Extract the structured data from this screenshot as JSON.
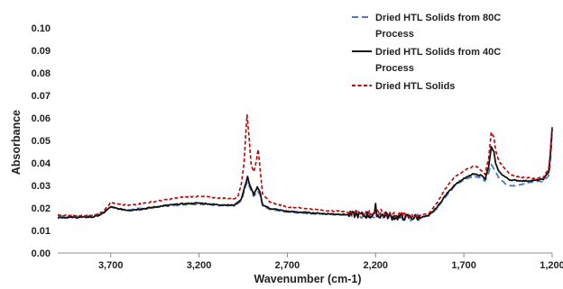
{
  "chart_data": {
    "type": "line",
    "title": "",
    "xlabel": "Wavenumber (cm-1)",
    "ylabel": "Absorbance",
    "xlim": [
      4000,
      1200
    ],
    "x_reversed": true,
    "ylim": [
      0,
      0.1
    ],
    "x_ticks": [
      3700,
      3200,
      2700,
      2200,
      1700,
      1200
    ],
    "x_tick_labels": [
      "3,700",
      "3,200",
      "2,700",
      "2,200",
      "1,700",
      "1,200"
    ],
    "y_ticks": [
      0,
      0.01,
      0.02,
      0.03,
      0.04,
      0.05,
      0.06,
      0.07,
      0.08,
      0.09,
      0.1
    ],
    "y_tick_labels": [
      "0.00",
      "0.01",
      "0.02",
      "0.03",
      "0.04",
      "0.05",
      "0.06",
      "0.07",
      "0.08",
      "0.09",
      "0.10"
    ],
    "grid": false,
    "legend": "top-right",
    "series": [
      {
        "name": "Dried HTL Solids from 80C Process",
        "color": "#4a7ebb",
        "dash": "long-dash",
        "points": [
          [
            4000,
            0.0165
          ],
          [
            3900,
            0.0162
          ],
          [
            3800,
            0.0165
          ],
          [
            3750,
            0.0175
          ],
          [
            3700,
            0.0205
          ],
          [
            3650,
            0.0195
          ],
          [
            3600,
            0.0192
          ],
          [
            3500,
            0.0198
          ],
          [
            3400,
            0.0208
          ],
          [
            3300,
            0.0215
          ],
          [
            3200,
            0.0218
          ],
          [
            3100,
            0.0212
          ],
          [
            3000,
            0.021
          ],
          [
            2960,
            0.023
          ],
          [
            2935,
            0.0298
          ],
          [
            2925,
            0.0318
          ],
          [
            2915,
            0.0295
          ],
          [
            2890,
            0.025
          ],
          [
            2870,
            0.0275
          ],
          [
            2855,
            0.0262
          ],
          [
            2840,
            0.021
          ],
          [
            2800,
            0.0195
          ],
          [
            2700,
            0.0182
          ],
          [
            2600,
            0.0178
          ],
          [
            2500,
            0.0172
          ],
          [
            2400,
            0.017
          ],
          [
            2350,
            0.0168
          ],
          [
            2300,
            0.0168
          ],
          [
            2200,
            0.0165
          ],
          [
            2150,
            0.017
          ],
          [
            2100,
            0.0162
          ],
          [
            2000,
            0.0158
          ],
          [
            1950,
            0.016
          ],
          [
            1900,
            0.0165
          ],
          [
            1850,
            0.02
          ],
          [
            1800,
            0.0255
          ],
          [
            1750,
            0.03
          ],
          [
            1700,
            0.0325
          ],
          [
            1650,
            0.034
          ],
          [
            1600,
            0.0335
          ],
          [
            1580,
            0.032
          ],
          [
            1560,
            0.0355
          ],
          [
            1545,
            0.0395
          ],
          [
            1520,
            0.036
          ],
          [
            1500,
            0.033
          ],
          [
            1470,
            0.031
          ],
          [
            1440,
            0.0298
          ],
          [
            1400,
            0.03
          ],
          [
            1350,
            0.031
          ],
          [
            1300,
            0.0318
          ],
          [
            1250,
            0.032
          ],
          [
            1220,
            0.0345
          ],
          [
            1210,
            0.04
          ],
          [
            1200,
            0.0545
          ]
        ]
      },
      {
        "name": "Dried HTL Solids from 40C Process",
        "color": "#111111",
        "dash": "solid",
        "points": [
          [
            4000,
            0.0158
          ],
          [
            3900,
            0.0158
          ],
          [
            3800,
            0.016
          ],
          [
            3750,
            0.0172
          ],
          [
            3700,
            0.0205
          ],
          [
            3650,
            0.0195
          ],
          [
            3600,
            0.019
          ],
          [
            3500,
            0.0198
          ],
          [
            3400,
            0.021
          ],
          [
            3300,
            0.0218
          ],
          [
            3200,
            0.0222
          ],
          [
            3100,
            0.0215
          ],
          [
            3000,
            0.0212
          ],
          [
            2960,
            0.024
          ],
          [
            2935,
            0.031
          ],
          [
            2925,
            0.034
          ],
          [
            2915,
            0.0305
          ],
          [
            2890,
            0.026
          ],
          [
            2870,
            0.0292
          ],
          [
            2855,
            0.027
          ],
          [
            2840,
            0.0215
          ],
          [
            2800,
            0.0198
          ],
          [
            2700,
            0.0185
          ],
          [
            2600,
            0.018
          ],
          [
            2500,
            0.0175
          ],
          [
            2400,
            0.0172
          ],
          [
            2350,
            0.017
          ],
          [
            2300,
            0.017
          ],
          [
            2200,
            0.0165
          ],
          [
            2150,
            0.0168
          ],
          [
            2100,
            0.016
          ],
          [
            2000,
            0.0158
          ],
          [
            1950,
            0.0158
          ],
          [
            1900,
            0.0165
          ],
          [
            1850,
            0.0205
          ],
          [
            1800,
            0.026
          ],
          [
            1750,
            0.0305
          ],
          [
            1700,
            0.033
          ],
          [
            1650,
            0.035
          ],
          [
            1600,
            0.0345
          ],
          [
            1580,
            0.033
          ],
          [
            1560,
            0.038
          ],
          [
            1545,
            0.047
          ],
          [
            1530,
            0.045
          ],
          [
            1520,
            0.0395
          ],
          [
            1500,
            0.036
          ],
          [
            1470,
            0.034
          ],
          [
            1440,
            0.0325
          ],
          [
            1400,
            0.0322
          ],
          [
            1350,
            0.032
          ],
          [
            1300,
            0.0322
          ],
          [
            1250,
            0.0328
          ],
          [
            1220,
            0.036
          ],
          [
            1210,
            0.044
          ],
          [
            1200,
            0.0555
          ]
        ]
      },
      {
        "name": "Dried HTL Solids",
        "color": "#c00000",
        "dash": "short-dash",
        "points": [
          [
            4000,
            0.0168
          ],
          [
            3900,
            0.0165
          ],
          [
            3800,
            0.0168
          ],
          [
            3750,
            0.018
          ],
          [
            3700,
            0.0225
          ],
          [
            3650,
            0.0215
          ],
          [
            3600,
            0.0212
          ],
          [
            3500,
            0.0222
          ],
          [
            3400,
            0.0235
          ],
          [
            3300,
            0.0248
          ],
          [
            3200,
            0.0252
          ],
          [
            3100,
            0.0245
          ],
          [
            3000,
            0.0242
          ],
          [
            2980,
            0.025
          ],
          [
            2960,
            0.031
          ],
          [
            2945,
            0.0398
          ],
          [
            2935,
            0.0535
          ],
          [
            2928,
            0.0615
          ],
          [
            2920,
            0.0545
          ],
          [
            2905,
            0.0395
          ],
          [
            2890,
            0.036
          ],
          [
            2875,
            0.041
          ],
          [
            2865,
            0.0462
          ],
          [
            2855,
            0.038
          ],
          [
            2840,
            0.0265
          ],
          [
            2800,
            0.0225
          ],
          [
            2700,
            0.0205
          ],
          [
            2600,
            0.0198
          ],
          [
            2500,
            0.019
          ],
          [
            2400,
            0.0185
          ],
          [
            2350,
            0.0182
          ],
          [
            2300,
            0.0182
          ],
          [
            2200,
            0.0178
          ],
          [
            2150,
            0.018
          ],
          [
            2100,
            0.0172
          ],
          [
            2000,
            0.0168
          ],
          [
            1950,
            0.0168
          ],
          [
            1900,
            0.0175
          ],
          [
            1850,
            0.0225
          ],
          [
            1800,
            0.029
          ],
          [
            1750,
            0.034
          ],
          [
            1700,
            0.0365
          ],
          [
            1650,
            0.0385
          ],
          [
            1620,
            0.0382
          ],
          [
            1600,
            0.0365
          ],
          [
            1580,
            0.035
          ],
          [
            1560,
            0.042
          ],
          [
            1545,
            0.0535
          ],
          [
            1530,
            0.0515
          ],
          [
            1520,
            0.0455
          ],
          [
            1500,
            0.0405
          ],
          [
            1470,
            0.0378
          ],
          [
            1440,
            0.035
          ],
          [
            1400,
            0.034
          ],
          [
            1350,
            0.0335
          ],
          [
            1300,
            0.033
          ],
          [
            1250,
            0.0335
          ],
          [
            1220,
            0.0375
          ],
          [
            1210,
            0.045
          ],
          [
            1200,
            0.056
          ]
        ]
      }
    ],
    "noise_band": {
      "from": 2350,
      "to": 1950,
      "amplitude": 0.0015,
      "spike_at": 2200,
      "spike_value": 0.022
    }
  }
}
